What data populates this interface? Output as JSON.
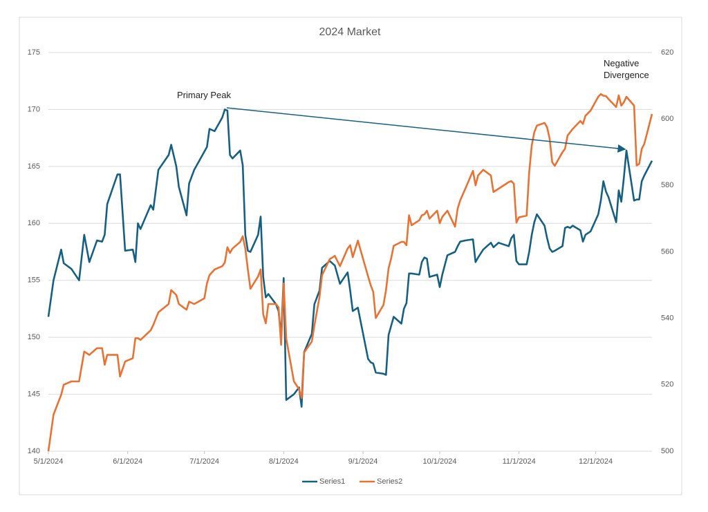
{
  "chart_data": {
    "type": "line",
    "title": "2024 Market",
    "x": [
      "5/1/2024",
      "5/3/2024",
      "5/6/2024",
      "5/7/2024",
      "5/10/2024",
      "5/13/2024",
      "5/15/2024",
      "5/17/2024",
      "5/20/2024",
      "5/22/2024",
      "5/23/2024",
      "5/24/2024",
      "5/28/2024",
      "5/29/2024",
      "5/31/2024",
      "6/3/2024",
      "6/4/2024",
      "6/5/2024",
      "6/6/2024",
      "6/10/2024",
      "6/11/2024",
      "6/13/2024",
      "6/17/2024",
      "6/18/2024",
      "6/20/2024",
      "6/21/2024",
      "6/24/2024",
      "6/25/2024",
      "6/27/2024",
      "7/1/2024",
      "7/2/2024",
      "7/3/2024",
      "7/5/2024",
      "7/8/2024",
      "7/9/2024",
      "7/10/2024",
      "7/11/2024",
      "7/12/2024",
      "7/15/2024",
      "7/16/2024",
      "7/17/2024",
      "7/18/2024",
      "7/19/2024",
      "7/22/2024",
      "7/23/2024",
      "7/24/2024",
      "7/25/2024",
      "7/26/2024",
      "7/29/2024",
      "7/30/2024",
      "7/31/2024",
      "8/1/2024",
      "8/2/2024",
      "8/5/2024",
      "8/7/2024",
      "8/8/2024",
      "8/9/2024",
      "8/12/2024",
      "8/13/2024",
      "8/15/2024",
      "8/16/2024",
      "8/19/2024",
      "8/21/2024",
      "8/23/2024",
      "8/26/2024",
      "8/27/2024",
      "8/28/2024",
      "8/30/2024",
      "9/3/2024",
      "9/4/2024",
      "9/5/2024",
      "9/6/2024",
      "9/9/2024",
      "9/10/2024",
      "9/11/2024",
      "9/12/2024",
      "9/13/2024",
      "9/16/2024",
      "9/17/2024",
      "9/18/2024",
      "9/19/2024",
      "9/20/2024",
      "9/23/2024",
      "9/24/2024",
      "9/25/2024",
      "9/26/2024",
      "9/27/2024",
      "9/30/2024",
      "10/1/2024",
      "10/2/2024",
      "10/4/2024",
      "10/7/2024",
      "10/8/2024",
      "10/9/2024",
      "10/11/2024",
      "10/14/2024",
      "10/15/2024",
      "10/16/2024",
      "10/18/2024",
      "10/21/2024",
      "10/22/2024",
      "10/24/2024",
      "10/28/2024",
      "10/29/2024",
      "10/30/2024",
      "10/31/2024",
      "11/1/2024",
      "11/4/2024",
      "11/5/2024",
      "11/6/2024",
      "11/7/2024",
      "11/8/2024",
      "11/11/2024",
      "11/12/2024",
      "11/13/2024",
      "11/14/2024",
      "11/15/2024",
      "11/18/2024",
      "11/19/2024",
      "11/20/2024",
      "11/21/2024",
      "11/22/2024",
      "11/25/2024",
      "11/26/2024",
      "11/27/2024",
      "11/29/2024",
      "12/2/2024",
      "12/3/2024",
      "12/4/2024",
      "12/5/2024",
      "12/6/2024",
      "12/9/2024",
      "12/10/2024",
      "12/11/2024",
      "12/12/2024",
      "12/13/2024",
      "12/16/2024",
      "12/17/2024",
      "12/18/2024",
      "12/19/2024",
      "12/20/2024",
      "12/23/2024"
    ],
    "series": [
      {
        "name": "Series1",
        "color": "#156082",
        "axis": "y",
        "values": [
          151.8,
          155.0,
          157.7,
          156.5,
          156.0,
          155.0,
          159.0,
          156.6,
          158.5,
          158.4,
          159.0,
          161.7,
          164.3,
          164.3,
          157.6,
          157.7,
          156.6,
          160.0,
          159.5,
          161.6,
          161.2,
          164.7,
          166.0,
          166.9,
          165.0,
          163.2,
          160.7,
          163.5,
          164.7,
          166.3,
          166.7,
          168.3,
          168.1,
          169.3,
          170.0,
          169.9,
          166.0,
          165.7,
          166.4,
          165.1,
          159.0,
          157.6,
          157.5,
          159.0,
          160.6,
          155.3,
          153.5,
          153.8,
          152.9,
          152.3,
          150.1,
          155.2,
          144.5,
          145.0,
          145.6,
          143.9,
          148.7,
          150.3,
          152.9,
          154.1,
          156.1,
          156.7,
          156.3,
          154.7,
          155.7,
          154.1,
          152.3,
          152.6,
          148.1,
          147.8,
          147.7,
          146.9,
          146.8,
          146.7,
          150.2,
          151.0,
          151.8,
          151.2,
          152.5,
          153.0,
          155.6,
          155.6,
          155.5,
          156.6,
          157.0,
          156.9,
          155.3,
          155.5,
          154.4,
          155.5,
          157.2,
          157.5,
          158.0,
          158.4,
          158.5,
          158.6,
          156.6,
          157.0,
          157.7,
          158.3,
          157.9,
          158.3,
          158.0,
          158.7,
          159.0,
          156.7,
          156.4,
          156.4,
          157.5,
          159.0,
          160.1,
          160.8,
          159.8,
          158.7,
          157.8,
          157.5,
          157.6,
          158.0,
          159.6,
          159.7,
          159.6,
          159.8,
          159.4,
          158.4,
          159.0,
          159.3,
          160.8,
          162.0,
          163.7,
          162.8,
          162.3,
          160.1,
          162.9,
          161.9,
          164.0,
          166.4,
          162.0,
          162.1,
          162.1,
          163.7,
          164.2,
          165.5
        ]
      },
      {
        "name": "Series2",
        "color": "#e97132",
        "axis": "y2",
        "values": [
          500,
          511,
          517,
          520,
          521,
          521,
          530,
          529,
          531,
          531,
          526,
          529,
          529,
          522.5,
          527,
          528,
          534,
          534,
          533.5,
          536.4,
          538,
          541.8,
          544.3,
          548.5,
          547,
          544.3,
          542.6,
          545,
          544.3,
          546,
          550.5,
          553,
          554.7,
          555.7,
          556.8,
          561.4,
          559.7,
          561,
          563,
          564.7,
          561,
          554.7,
          548.9,
          552.6,
          554.7,
          541.2,
          538.5,
          544.3,
          544.3,
          543.3,
          532,
          550.5,
          533.9,
          521,
          518.7,
          516,
          529.7,
          533,
          537.8,
          546.4,
          553,
          557.8,
          558.8,
          555.7,
          561,
          562,
          558.4,
          563.4,
          552.6,
          550,
          548,
          540.1,
          544,
          548.5,
          555,
          558,
          561.8,
          563,
          563,
          562,
          571,
          568,
          569.5,
          571,
          571.3,
          572.4,
          570,
          572.4,
          568.6,
          570.5,
          572.4,
          567.6,
          573,
          575.5,
          579,
          584.4,
          580,
          583,
          584.7,
          583,
          578,
          579,
          581,
          581.3,
          580.5,
          568.8,
          570.4,
          570.9,
          584,
          592.1,
          596,
          598,
          598.8,
          597.5,
          594,
          587,
          585.9,
          590,
          591,
          595,
          596,
          597,
          599.4,
          598.5,
          601,
          602.5,
          606.7,
          607.5,
          607,
          606.9,
          606,
          603.6,
          607.1,
          604,
          605,
          606.7,
          604,
          586,
          586.5,
          591,
          592.5,
          601.5
        ]
      }
    ],
    "xlim": [
      "5/1/2024",
      "12/23/2024"
    ],
    "xticks": [
      "5/1/2024",
      "6/1/2024",
      "7/1/2024",
      "8/1/2024",
      "9/1/2024",
      "10/1/2024",
      "11/1/2024",
      "12/1/2024"
    ],
    "ylim": [
      140,
      175
    ],
    "yticks": [
      140,
      145,
      150,
      155,
      160,
      165,
      170,
      175
    ],
    "y2lim": [
      500,
      620
    ],
    "y2ticks": [
      500,
      520,
      540,
      560,
      580,
      600,
      620
    ],
    "grid": true,
    "legend": "bottom",
    "annotations": [
      "Primary Peak",
      "Negative Divergence"
    ]
  }
}
